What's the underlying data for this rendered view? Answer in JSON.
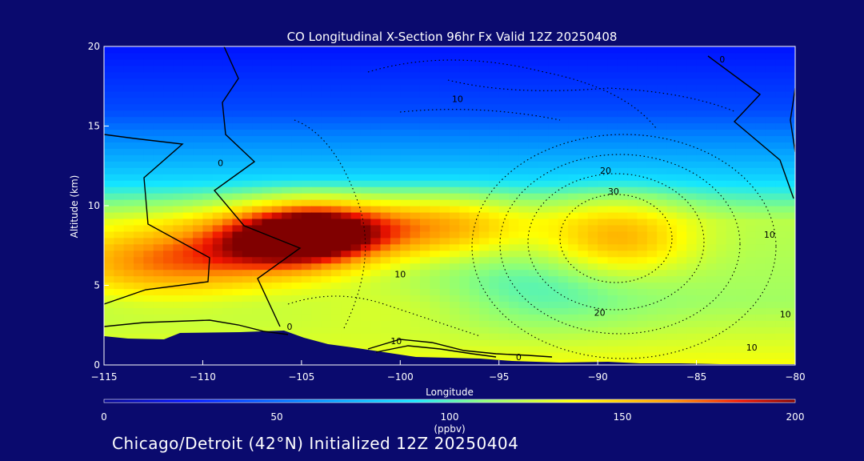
{
  "chart_data": {
    "type": "heatmap",
    "title": "CO Longitudinal X-Section 96hr  Fx Valid 12Z 20250408",
    "xlabel": "Longitude",
    "ylabel": "Altitude (km)",
    "xlim": [
      -115,
      -80
    ],
    "ylim": [
      0,
      20
    ],
    "x_ticks": [
      -115,
      -110,
      -105,
      -100,
      -95,
      -90,
      -85,
      -80
    ],
    "x_tick_labels": [
      "−115",
      "−110",
      "−105",
      "−100",
      "−95",
      "−90",
      "−85",
      "−80"
    ],
    "y_ticks": [
      0,
      5,
      10,
      15,
      20
    ],
    "y_tick_labels": [
      "0",
      "5",
      "10",
      "15",
      "20"
    ],
    "colorbar": {
      "range": [
        0,
        200
      ],
      "ticks": [
        0,
        50,
        100,
        150,
        200
      ],
      "tick_labels": [
        "0",
        "50",
        "100",
        "150",
        "200"
      ],
      "unit_label": "(ppbv)"
    },
    "field_anchors": [
      {
        "lon": -112,
        "alt": 6.5,
        "co": 175
      },
      {
        "lon": -106,
        "alt": 7.8,
        "co": 195
      },
      {
        "lon": -104,
        "alt": 8.4,
        "co": 200
      },
      {
        "lon": -98,
        "alt": 8.6,
        "co": 165
      },
      {
        "lon": -89,
        "alt": 7.9,
        "co": 165
      },
      {
        "lon": -93,
        "alt": 5.0,
        "co": 95
      },
      {
        "lon": -100,
        "alt": 3.5,
        "co": 130
      },
      {
        "lon": -110,
        "alt": 11.5,
        "co": 110
      },
      {
        "lon": -97,
        "alt": 17.0,
        "co": 30
      },
      {
        "lon": -85,
        "alt": 19.0,
        "co": 20
      }
    ],
    "contour_labels": [
      {
        "text": "0",
        "lon": -109.1,
        "alt": 12.5
      },
      {
        "text": "0",
        "lon": -105.6,
        "alt": 2.2
      },
      {
        "text": "0",
        "lon": -94.0,
        "alt": 0.3
      },
      {
        "text": "0",
        "lon": -83.7,
        "alt": 19.0
      },
      {
        "text": "10",
        "lon": -97.1,
        "alt": 16.5
      },
      {
        "text": "10",
        "lon": -100.0,
        "alt": 5.5
      },
      {
        "text": "10",
        "lon": -100.2,
        "alt": 1.3
      },
      {
        "text": "10",
        "lon": -80.5,
        "alt": 3.0
      },
      {
        "text": "10",
        "lon": -82.2,
        "alt": 0.9
      },
      {
        "text": "10",
        "lon": -81.3,
        "alt": 8.0
      },
      {
        "text": "20",
        "lon": -89.6,
        "alt": 12.0
      },
      {
        "text": "20",
        "lon": -89.9,
        "alt": 3.1
      },
      {
        "text": "30",
        "lon": -89.2,
        "alt": 10.7
      }
    ]
  },
  "footer": {
    "text": "Chicago/Detroit (42°N) Initialized 12Z 20250404"
  }
}
